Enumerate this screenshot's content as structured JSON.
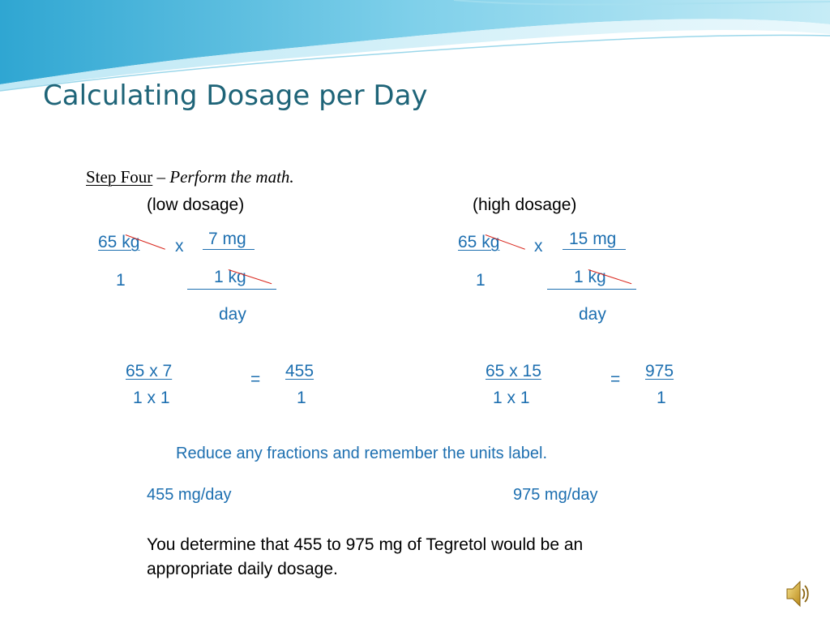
{
  "slide": {
    "title": "Calculating Dosage per Day",
    "step_label": "Step Four",
    "step_dash": " – ",
    "step_text": "Perform the math.",
    "low_heading": "(low dosage)",
    "high_heading": "(high dosage)",
    "low": {
      "weight": "65 kg",
      "one": "1",
      "times": "x",
      "dose": "7 mg",
      "per_kg": "1  kg",
      "per_day": "day",
      "numerator": "65 x 7",
      "denominator": "1  x 1",
      "equals": "=",
      "result_num": "455",
      "result_den": "1",
      "answer": "455 mg/day"
    },
    "high": {
      "weight": "65 kg",
      "one": "1",
      "times": "x",
      "dose": "15 mg",
      "per_kg": "1  kg",
      "per_day": "day",
      "numerator": "65 x 15",
      "denominator": "1  x 1",
      "equals": "=",
      "result_num": "975",
      "result_den": "1",
      "answer": "975 mg/day"
    },
    "reduce_note": "Reduce any fractions and remember the units label.",
    "conclusion_line1": "You determine that 455  to 975 mg of Tegretol would be an",
    "conclusion_line2": "appropriate daily dosage.",
    "icons": {
      "audio": "speaker-icon"
    },
    "colors": {
      "title": "#1e6478",
      "math_text": "#1d6fb0",
      "cancel_line": "#d9261c",
      "banner": "#4fb6d8"
    }
  }
}
